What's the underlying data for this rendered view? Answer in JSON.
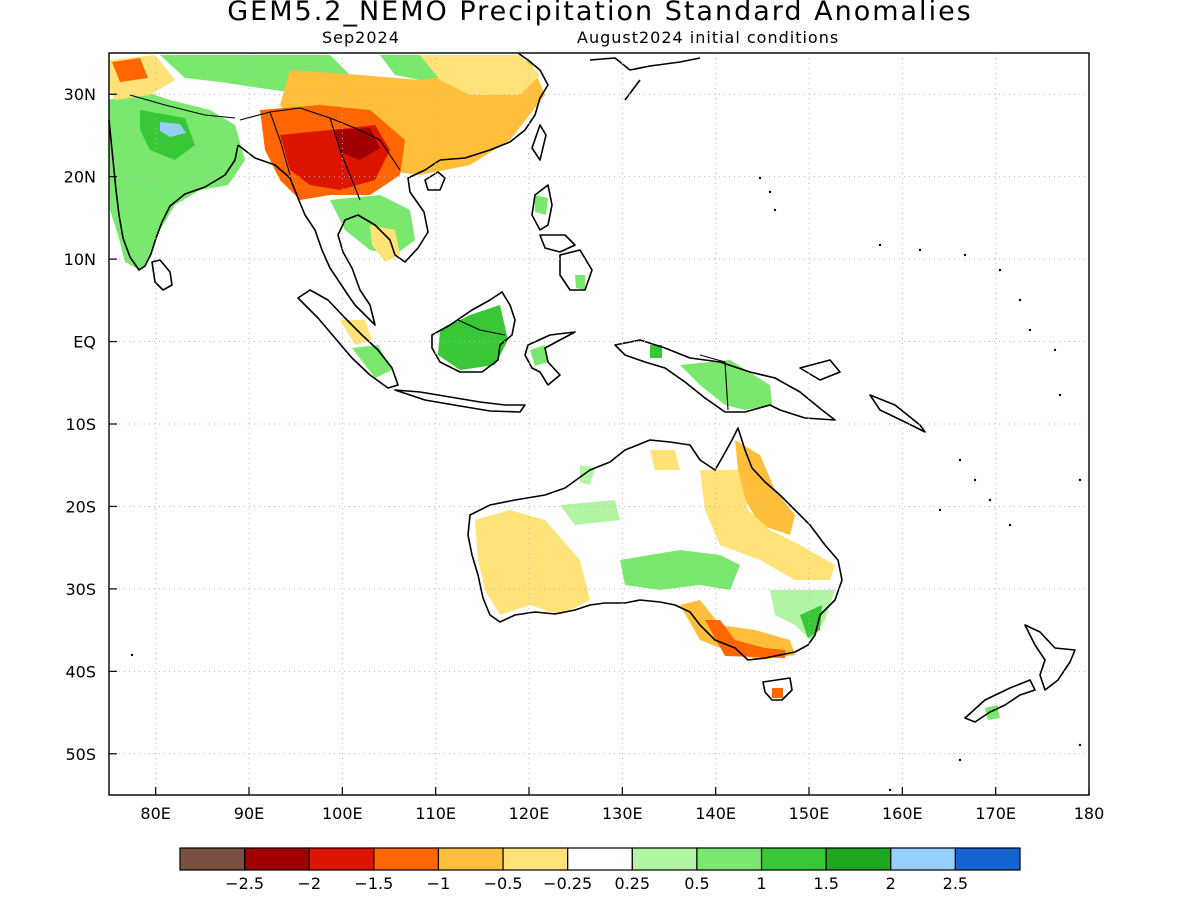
{
  "title": "GEM5.2_NEMO Precipitation Standard Anomalies",
  "subtitle_left": "Sep2024",
  "subtitle_right": "August2024 initial conditions",
  "map": {
    "projection": "lat-lon",
    "lon_range": [
      75,
      180
    ],
    "lat_range": [
      -55,
      35
    ],
    "lon_ticks": [
      "80E",
      "90E",
      "100E",
      "110E",
      "120E",
      "130E",
      "140E",
      "150E",
      "160E",
      "170E",
      "180"
    ],
    "lat_ticks": [
      "30N",
      "20N",
      "10N",
      "EQ",
      "10S",
      "20S",
      "30S",
      "40S",
      "50S"
    ],
    "gridlines": "dotted"
  },
  "colorbar": {
    "colors": [
      "#7a5043",
      "#a00000",
      "#dd1500",
      "#ff6600",
      "#ffbf3a",
      "#ffe378",
      "#ffffff",
      "#b2f5a5",
      "#7ae86f",
      "#37c737",
      "#1fa81f",
      "#96d0fa",
      "#1464d2"
    ],
    "labels": [
      "-2.5",
      "-2",
      "-1.5",
      "-1",
      "-0.5",
      "-0.25",
      "0.25",
      "0.5",
      "1",
      "1.5",
      "2",
      "2.5"
    ]
  },
  "regions": [
    {
      "name": "Myanmar-Yunnan",
      "color": "#dd1500"
    },
    {
      "name": "South China",
      "color": "#ffbf3a"
    },
    {
      "name": "India",
      "color": "#7ae86f"
    },
    {
      "name": "Borneo",
      "color": "#37c737"
    },
    {
      "name": "New Guinea",
      "color": "#7ae86f"
    },
    {
      "name": "West Australia",
      "color": "#ffe378"
    },
    {
      "name": "Queensland",
      "color": "#ffbf3a"
    },
    {
      "name": "Victoria",
      "color": "#ff6600"
    }
  ]
}
